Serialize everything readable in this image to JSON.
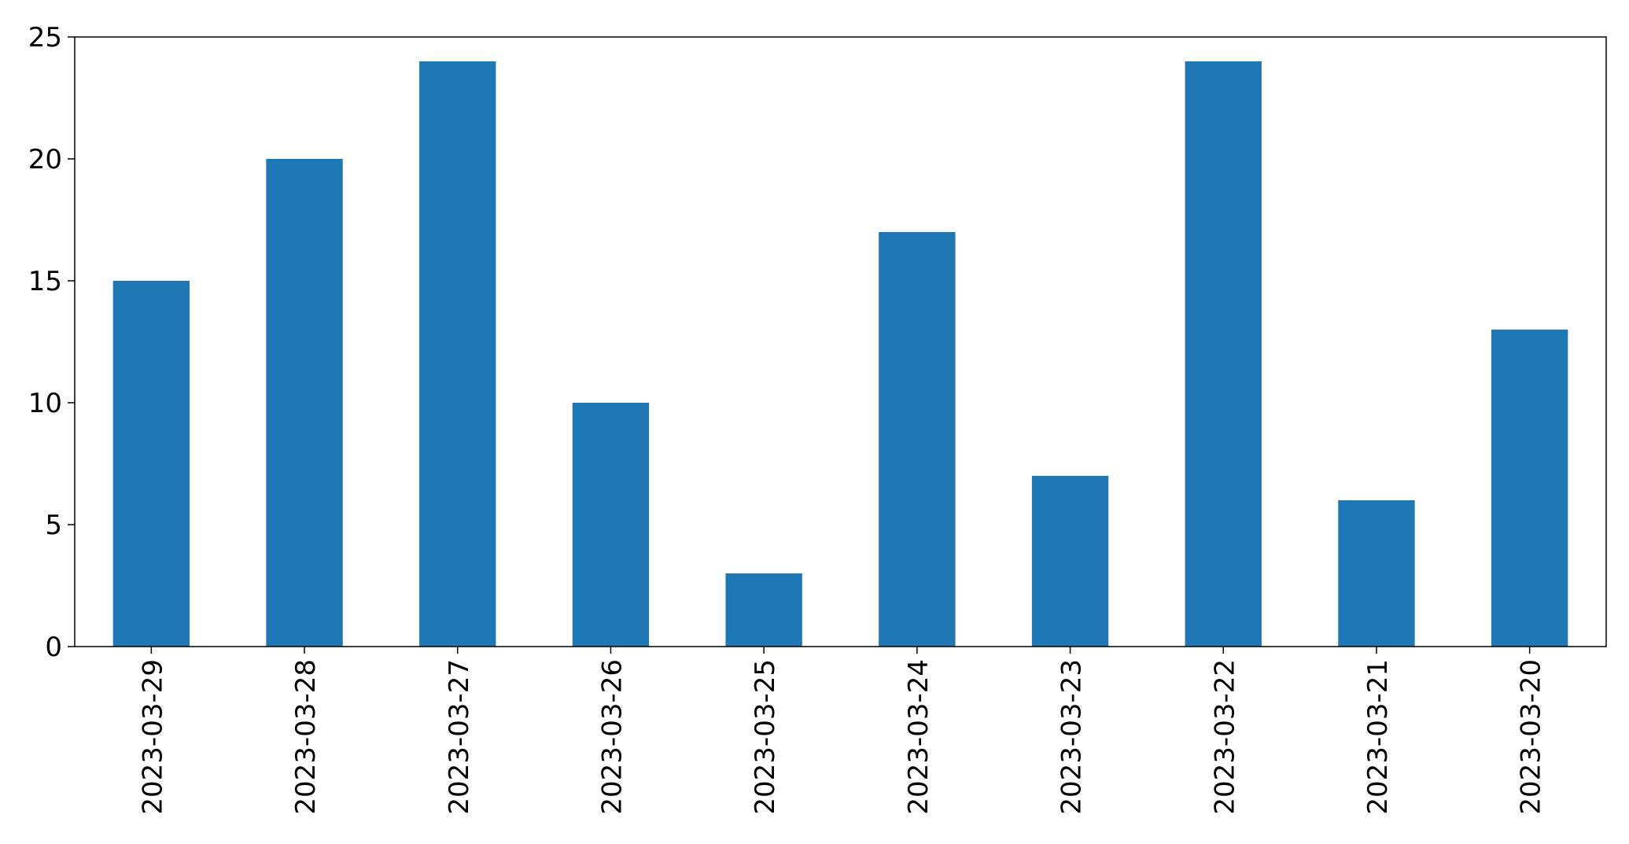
{
  "chart_data": {
    "type": "bar",
    "categories": [
      "2023-03-29",
      "2023-03-28",
      "2023-03-27",
      "2023-03-26",
      "2023-03-25",
      "2023-03-24",
      "2023-03-23",
      "2023-03-22",
      "2023-03-21",
      "2023-03-20"
    ],
    "values": [
      15,
      20,
      24,
      10,
      3,
      17,
      7,
      24,
      6,
      13
    ],
    "title": "",
    "xlabel": "",
    "ylabel": "",
    "ylim": [
      0,
      25
    ],
    "yticks": [
      0,
      5,
      10,
      15,
      20,
      25
    ],
    "grid": false,
    "legend": false,
    "bar_color": "#1f77b4"
  }
}
